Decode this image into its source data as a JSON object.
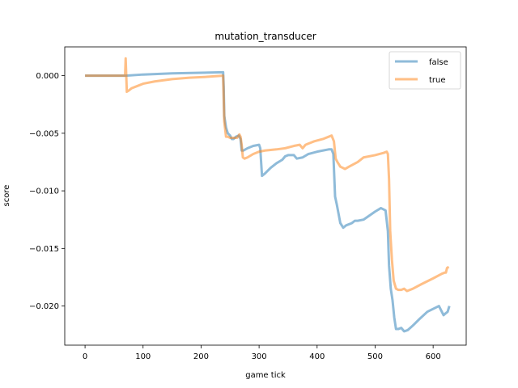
{
  "chart_data": {
    "type": "line",
    "title": "mutation_transducer",
    "xlabel": "game tick",
    "ylabel": "score",
    "xlim": [
      -35,
      657
    ],
    "ylim": [
      -0.0234,
      0.0025
    ],
    "xticks": [
      0,
      100,
      200,
      300,
      400,
      500,
      600
    ],
    "xtick_labels": [
      "0",
      "100",
      "200",
      "300",
      "400",
      "500",
      "600"
    ],
    "yticks": [
      0.0,
      -0.005,
      -0.01,
      -0.015,
      -0.02
    ],
    "ytick_labels": [
      "0.000",
      "−0.005",
      "−0.010",
      "−0.015",
      "−0.020"
    ],
    "legend_position": "top-right",
    "grid": false,
    "series": [
      {
        "name": "false",
        "color": "#1f77b4",
        "x": [
          0,
          60,
          70,
          100,
          150,
          200,
          238,
          239,
          240,
          243,
          246,
          250,
          253,
          256,
          260,
          265,
          268,
          270,
          273,
          280,
          290,
          300,
          302,
          305,
          310,
          320,
          330,
          340,
          345,
          350,
          360,
          365,
          375,
          385,
          400,
          420,
          425,
          428,
          431,
          434,
          437,
          440,
          445,
          450,
          460,
          465,
          470,
          480,
          500,
          510,
          518,
          522,
          524,
          527,
          530,
          533,
          536,
          540,
          545,
          550,
          556,
          565,
          575,
          590,
          610,
          618,
          620,
          625,
          628
        ],
        "y": [
          0.0,
          0.0,
          0.0,
          0.0001,
          0.0002,
          0.00025,
          0.0003,
          -0.001,
          -0.0035,
          -0.0045,
          -0.005,
          -0.0052,
          -0.0055,
          -0.0055,
          -0.0053,
          -0.0052,
          -0.0055,
          -0.0065,
          -0.0065,
          -0.0063,
          -0.0061,
          -0.006,
          -0.0063,
          -0.0087,
          -0.0085,
          -0.008,
          -0.0076,
          -0.0073,
          -0.007,
          -0.0069,
          -0.0069,
          -0.0072,
          -0.0071,
          -0.0068,
          -0.0066,
          -0.0064,
          -0.0064,
          -0.0068,
          -0.0105,
          -0.0112,
          -0.012,
          -0.0128,
          -0.0132,
          -0.013,
          -0.0128,
          -0.0126,
          -0.0126,
          -0.0125,
          -0.0118,
          -0.0115,
          -0.0117,
          -0.0135,
          -0.0165,
          -0.0185,
          -0.0195,
          -0.021,
          -0.022,
          -0.022,
          -0.0219,
          -0.0222,
          -0.0221,
          -0.0217,
          -0.0212,
          -0.0205,
          -0.02,
          -0.0208,
          -0.0207,
          -0.0205,
          -0.02
        ]
      },
      {
        "name": "true",
        "color": "#ff7f0e",
        "x": [
          0,
          69,
          70,
          72,
          75,
          80,
          90,
          100,
          120,
          150,
          180,
          210,
          238,
          239,
          240,
          243,
          246,
          250,
          255,
          262,
          266,
          268,
          270,
          272,
          275,
          280,
          290,
          300,
          310,
          330,
          345,
          360,
          370,
          375,
          380,
          395,
          410,
          425,
          429,
          432,
          435,
          440,
          444,
          448,
          455,
          470,
          480,
          500,
          515,
          520,
          522,
          524,
          526,
          529,
          532,
          536,
          540,
          545,
          550,
          555,
          565,
          580,
          600,
          615,
          620,
          622,
          624,
          627
        ],
        "y": [
          0.0,
          0.0,
          0.0015,
          -0.0014,
          -0.0013,
          -0.0011,
          -0.0009,
          -0.0007,
          -0.0005,
          -0.0003,
          -0.00018,
          -0.0001,
          0.0,
          -0.002,
          -0.004,
          -0.0053,
          -0.0053,
          -0.0054,
          -0.0054,
          -0.0054,
          -0.0051,
          -0.0053,
          -0.006,
          -0.0071,
          -0.0072,
          -0.0071,
          -0.0068,
          -0.0066,
          -0.0065,
          -0.0064,
          -0.0063,
          -0.0061,
          -0.006,
          -0.0063,
          -0.006,
          -0.0057,
          -0.0055,
          -0.0052,
          -0.0057,
          -0.0072,
          -0.0075,
          -0.0079,
          -0.008,
          -0.0081,
          -0.0079,
          -0.0075,
          -0.0071,
          -0.0069,
          -0.0067,
          -0.0066,
          -0.0068,
          -0.009,
          -0.0135,
          -0.016,
          -0.0178,
          -0.0185,
          -0.0186,
          -0.0186,
          -0.0185,
          -0.0187,
          -0.0185,
          -0.0181,
          -0.0176,
          -0.0172,
          -0.0171,
          -0.0171,
          -0.0167,
          -0.0166
        ]
      }
    ]
  }
}
